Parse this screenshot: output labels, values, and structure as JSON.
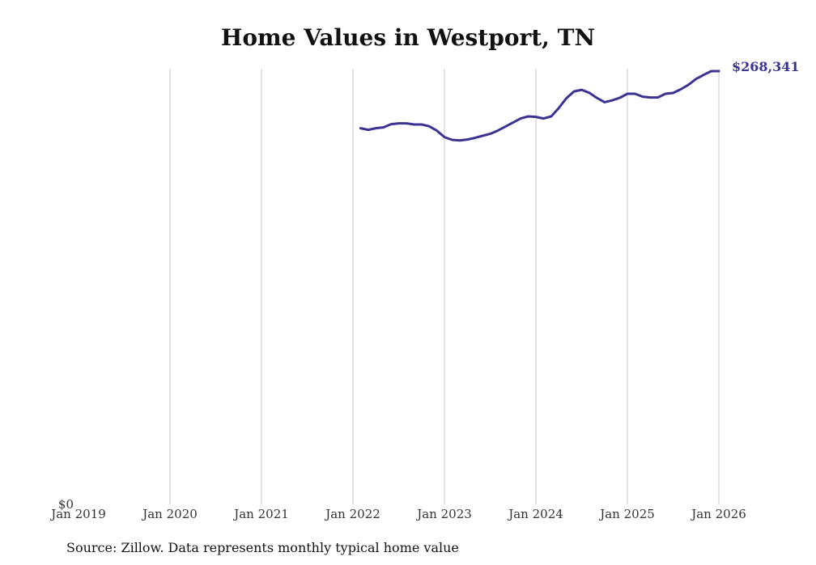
{
  "title": "Home Values in Westport, TN",
  "source_note": "Source: Zillow. Data represents monthly typical home value",
  "colors": {
    "line": "#3b3391",
    "grid": "#c8c8c8",
    "text": "#111111"
  },
  "chart_data": {
    "type": "line",
    "title": "Home Values in Westport, TN",
    "xlabel": "",
    "ylabel": "",
    "x_ticks": [
      "Jan 2019",
      "Jan 2020",
      "Jan 2021",
      "Jan 2022",
      "Jan 2023",
      "Jan 2024",
      "Jan 2025",
      "Jan 2026"
    ],
    "y_ticks": [
      "$0"
    ],
    "xlim": [
      2019.0,
      2026.0
    ],
    "ylim": [
      0,
      268341
    ],
    "grid": "vertical",
    "end_label": "$268,341",
    "series": [
      {
        "name": "Typical home value",
        "x": [
          2022.083,
          2022.167,
          2022.25,
          2022.333,
          2022.417,
          2022.5,
          2022.583,
          2022.667,
          2022.75,
          2022.833,
          2022.917,
          2023.0,
          2023.083,
          2023.167,
          2023.25,
          2023.333,
          2023.417,
          2023.5,
          2023.583,
          2023.667,
          2023.75,
          2023.833,
          2023.917,
          2024.0,
          2024.083,
          2024.167,
          2024.25,
          2024.333,
          2024.417,
          2024.5,
          2024.583,
          2024.667,
          2024.75,
          2024.833,
          2024.917,
          2025.0,
          2025.083,
          2025.167,
          2025.25,
          2025.333,
          2025.417,
          2025.5,
          2025.583,
          2025.667,
          2025.75,
          2025.833,
          2025.917,
          2026.0
        ],
        "y": [
          233000,
          232000,
          233000,
          233500,
          235500,
          236000,
          236000,
          235300,
          235300,
          234200,
          231500,
          227500,
          225800,
          225400,
          226000,
          227000,
          228300,
          229500,
          231500,
          234000,
          236500,
          239000,
          240300,
          240000,
          239000,
          240300,
          245500,
          251500,
          255800,
          256800,
          254900,
          251700,
          249100,
          250200,
          251800,
          254300,
          254300,
          252500,
          252000,
          252000,
          254300,
          254800,
          257100,
          259900,
          263500,
          266000,
          268341,
          268341
        ]
      }
    ]
  }
}
